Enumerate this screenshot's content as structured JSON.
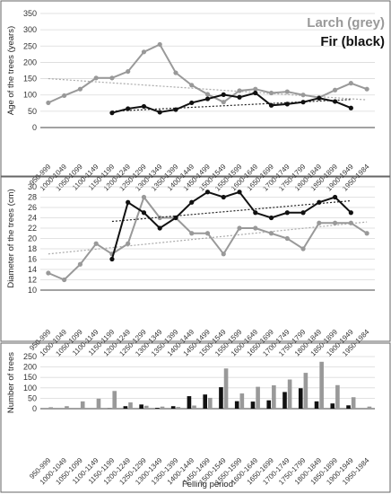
{
  "legend": {
    "larch": "Larch (grey)",
    "fir": "Fir (black)"
  },
  "colors": {
    "larch": "#999999",
    "fir": "#111111",
    "larch_trend": "#aaaaaa",
    "fir_trend": "#222222",
    "axis": "#444444",
    "panel_border": "#666666",
    "grid": "#d9d9d9"
  },
  "chart_data": [
    {
      "type": "line",
      "ylabel": "Age of the trees (years)",
      "ylim": [
        0,
        350
      ],
      "yticks": [
        0,
        50,
        100,
        150,
        200,
        250,
        300,
        350
      ],
      "grid": true,
      "legend_placement": "top-right",
      "categories": [
        "950-999",
        "1000-1049",
        "1050-1099",
        "1100-1149",
        "1150-1199",
        "1200-1249",
        "1250-1299",
        "1300-1349",
        "1350-1399",
        "1400-1449",
        "1450-1499",
        "1500-1549",
        "1550-1599",
        "1600-1649",
        "1650-1699",
        "1700-1749",
        "1750-1799",
        "1800-1849",
        "1850-1899",
        "1900-1949",
        "1950-1984"
      ],
      "series": [
        {
          "name": "Larch (grey)",
          "values": [
            76,
            98,
            118,
            152,
            152,
            172,
            232,
            255,
            168,
            130,
            102,
            78,
            113,
            118,
            106,
            110,
            100,
            92,
            115,
            136,
            118
          ],
          "trend": [
            150,
            85
          ]
        },
        {
          "name": "Fir (black)",
          "values": [
            null,
            null,
            null,
            null,
            45,
            58,
            65,
            47,
            55,
            76,
            88,
            101,
            93,
            106,
            68,
            72,
            78,
            90,
            80,
            60,
            null
          ],
          "trend": [
            50,
            86
          ]
        }
      ]
    },
    {
      "type": "line",
      "ylabel": "Diameter of the trees (cm)",
      "ylim": [
        10,
        30
      ],
      "yticks": [
        10,
        12,
        14,
        16,
        18,
        20,
        22,
        24,
        26,
        28,
        30
      ],
      "grid": true,
      "categories": [
        "950-999",
        "1000-1049",
        "1050-1099",
        "1100-1149",
        "1150-1199",
        "1200-1249",
        "1250-1299",
        "1300-1349",
        "1350-1399",
        "1400-1449",
        "1450-1499",
        "1500-1549",
        "1550-1599",
        "1600-1649",
        "1650-1699",
        "1700-1749",
        "1750-1799",
        "1800-1849",
        "1850-1899",
        "1900-1949",
        "1950-1984"
      ],
      "series": [
        {
          "name": "Larch (grey)",
          "values": [
            13.3,
            12,
            15,
            19,
            17,
            19,
            28,
            24,
            24,
            21,
            21,
            17,
            22,
            22,
            21,
            20,
            18,
            23,
            23,
            23,
            21
          ],
          "trend": [
            17,
            23.2
          ]
        },
        {
          "name": "Fir (black)",
          "values": [
            null,
            null,
            null,
            null,
            16,
            27,
            25,
            22,
            24,
            27,
            29,
            28,
            29,
            25,
            24,
            25,
            25,
            27,
            28,
            25,
            null
          ],
          "trend": [
            23.3,
            27.3
          ]
        }
      ]
    },
    {
      "type": "bar",
      "ylabel": "Number of trees",
      "xlabel": "Felling period",
      "ylim": [
        0,
        250
      ],
      "yticks": [
        0,
        50,
        100,
        150,
        200,
        250
      ],
      "grid": true,
      "categories": [
        "950-999",
        "1000-1049",
        "1050-1099",
        "1100-1149",
        "1150-1199",
        "1200-1249",
        "1250-1299",
        "1300-1349",
        "1350-1399",
        "1400-1449",
        "1450-1499",
        "1500-1549",
        "1550-1599",
        "1600-1649",
        "1650-1699",
        "1700-1749",
        "1750-1799",
        "1800-1849",
        "1850-1899",
        "1900-1949",
        "1950-1984"
      ],
      "series": [
        {
          "name": "Fir (black)",
          "values": [
            0,
            0,
            0,
            0,
            2,
            12,
            20,
            4,
            12,
            60,
            68,
            103,
            36,
            34,
            40,
            80,
            98,
            35,
            25,
            16,
            0
          ]
        },
        {
          "name": "Larch (grey)",
          "values": [
            7,
            12,
            35,
            48,
            85,
            30,
            14,
            10,
            8,
            15,
            52,
            193,
            73,
            105,
            112,
            140,
            172,
            225,
            113,
            55,
            10
          ]
        }
      ]
    }
  ]
}
